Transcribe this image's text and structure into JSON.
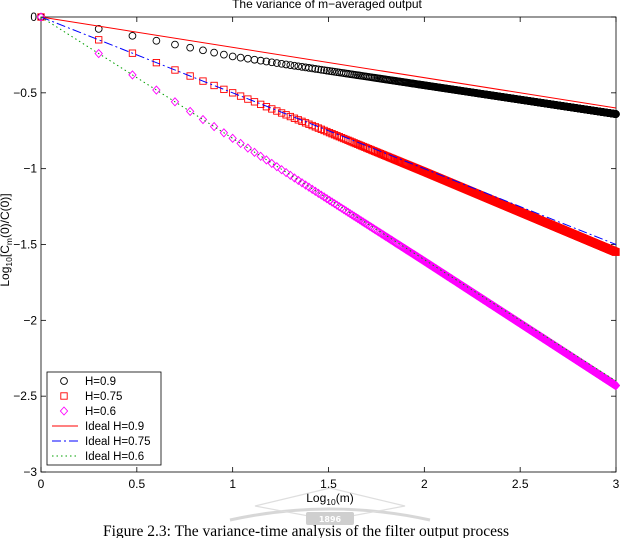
{
  "chart_data": {
    "type": "scatter",
    "title": "The variance of m−averaged output",
    "xlabel": {
      "base": "Log",
      "sub": "10",
      "rest": "(m)"
    },
    "ylabel": {
      "base": "Log",
      "sub1": "10",
      "mid": "[C",
      "sub2": "m",
      "rest": "(0)/C(0)]"
    },
    "xlim": [
      0,
      3
    ],
    "ylim": [
      -3,
      0
    ],
    "xticks": [
      0,
      0.5,
      1,
      1.5,
      2,
      2.5,
      3
    ],
    "xtick_labels": [
      "0",
      "0.5",
      "1",
      "1.5",
      "2",
      "2.5",
      "3"
    ],
    "yticks": [
      0,
      -0.5,
      -1,
      -1.5,
      -2,
      -2.5,
      -3
    ],
    "ytick_labels": [
      "0",
      "−0.5",
      "−1",
      "−1.5",
      "−2",
      "−2.5",
      "−3"
    ],
    "grid": false,
    "legend_position": "bottom-left",
    "x_points": "log10 of m = 1, 2, 3, ..., 1000",
    "series": [
      {
        "name": "H=0.9",
        "kind": "markers",
        "marker": "circle",
        "color": "#000000",
        "m_range": [
          1,
          1000
        ],
        "endpoints": {
          "y_at_x0": 0,
          "y_at_x3": -0.64
        },
        "slope_by_decade": [
          -0.26,
          -0.19,
          -0.19
        ]
      },
      {
        "name": "H=0.75",
        "kind": "markers",
        "marker": "square",
        "color": "#ff0000",
        "m_range": [
          1,
          1000
        ],
        "endpoints": {
          "y_at_x0": 0,
          "y_at_x3": -1.55
        },
        "slope_by_decade": [
          -0.5,
          -0.52,
          -0.53
        ]
      },
      {
        "name": "H=0.6",
        "kind": "markers",
        "marker": "diamond",
        "color": "#ff00ff",
        "m_range": [
          1,
          1000
        ],
        "endpoints": {
          "y_at_x0": 0,
          "y_at_x3": -2.43
        },
        "slope_by_decade": [
          -0.8,
          -0.81,
          -0.82
        ]
      },
      {
        "name": "Ideal H=0.9",
        "kind": "line",
        "line_style": "solid",
        "color": "#ff0000",
        "x": [
          0,
          3
        ],
        "y": [
          0,
          -0.6
        ]
      },
      {
        "name": "Ideal H=0.75",
        "kind": "line",
        "line_style": "dashdot",
        "color": "#0000ff",
        "x": [
          0,
          3
        ],
        "y": [
          0,
          -1.5
        ]
      },
      {
        "name": "Ideal H=0.6",
        "kind": "line",
        "line_style": "dotted",
        "color": "#00a000",
        "x": [
          0,
          3
        ],
        "y": [
          0,
          -2.4
        ]
      }
    ]
  },
  "caption": "Figure 2.3: The variance-time analysis of the filter output process",
  "watermark_text": "1896"
}
